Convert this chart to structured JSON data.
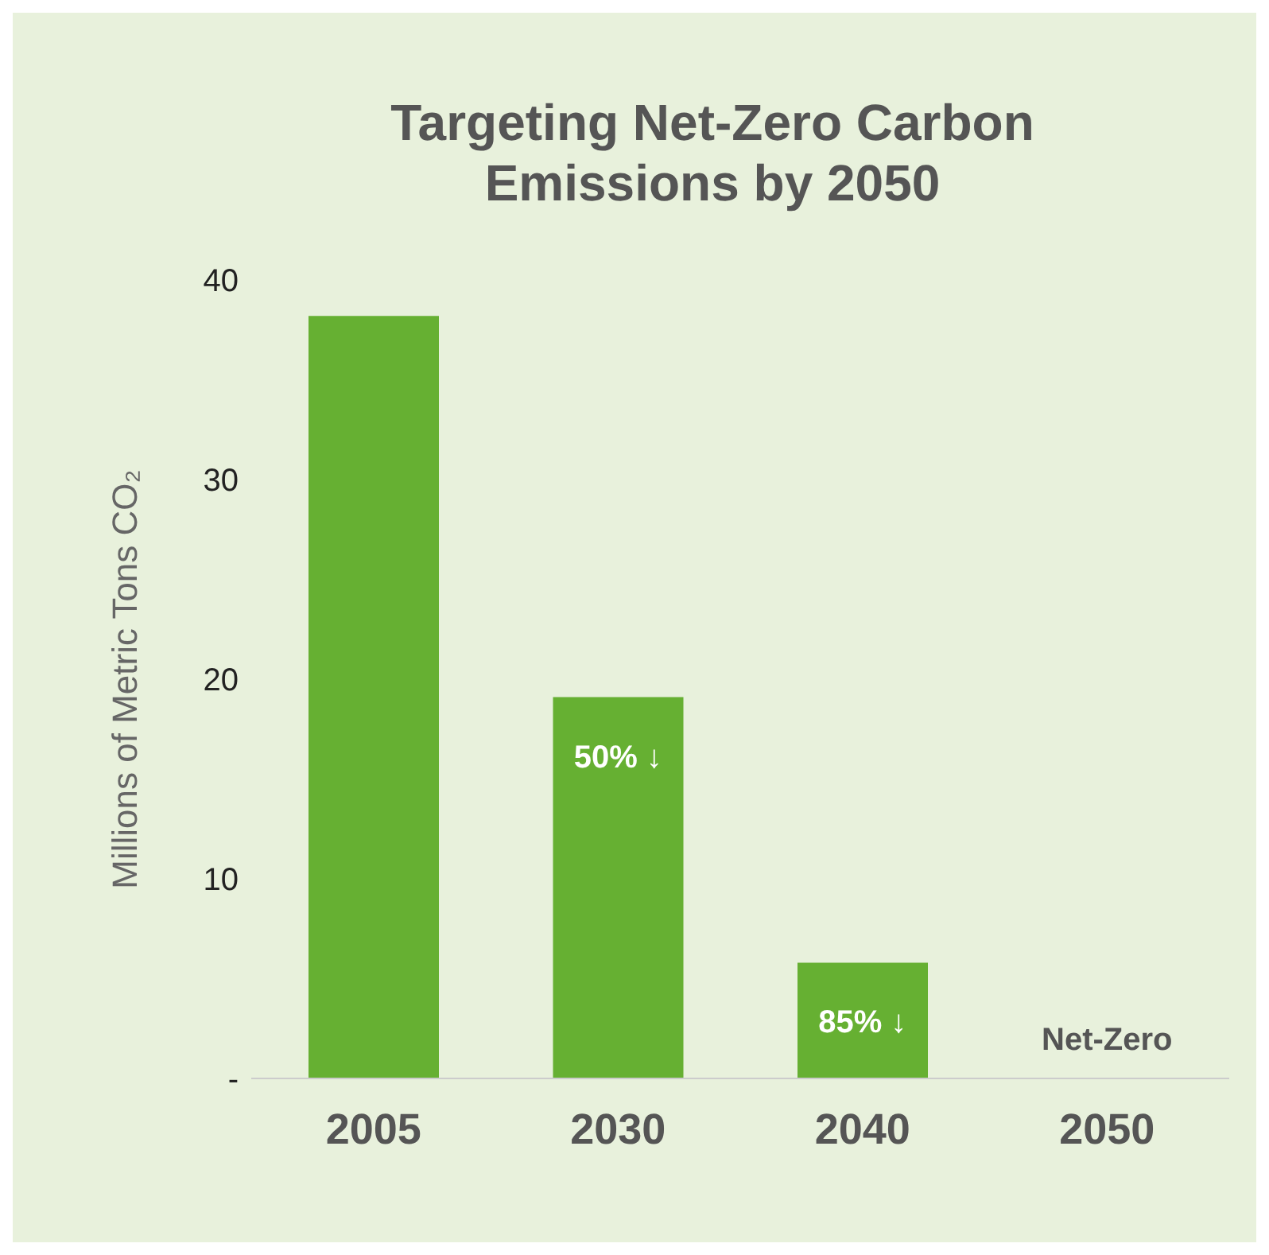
{
  "chart_data": {
    "type": "bar",
    "title": "Targeting Net-Zero Carbon Emissions by 2050",
    "ylabel": "Millions of Metric Tons CO₂",
    "categories": [
      "2005",
      "2030",
      "2040",
      "2050"
    ],
    "values": [
      38.2,
      19.1,
      5.8,
      0
    ],
    "color": "#66b032",
    "ylim": [
      0,
      40
    ],
    "yticks": [
      {
        "value": 0,
        "label": "-"
      },
      10,
      20,
      30,
      40
    ],
    "grid": false,
    "legend": false,
    "annotations": [
      {
        "text": "50% ↓",
        "x": "2030",
        "y": 19.1
      },
      {
        "text": "85% ↓",
        "x": "2040",
        "y": 5.8
      },
      {
        "text": "Net-Zero",
        "x": "2050",
        "y": 0
      }
    ]
  }
}
